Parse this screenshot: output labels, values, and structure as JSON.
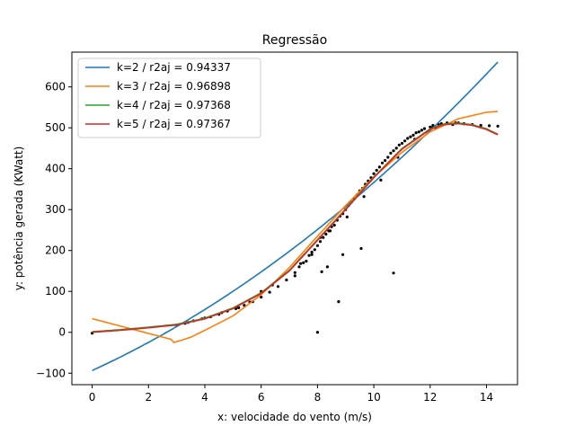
{
  "chart_data": {
    "type": "scatter",
    "title": "Regressão",
    "xlabel": "x: velocidade do vento (m/s)",
    "ylabel": "y: potência gerada (KWatt)",
    "xlim": [
      -0.72,
      15.1
    ],
    "ylim": [
      -128,
      685
    ],
    "xticks": [
      0,
      2,
      4,
      6,
      8,
      10,
      12,
      14
    ],
    "yticks": [
      -100,
      0,
      100,
      200,
      300,
      400,
      500,
      600
    ],
    "grid": false,
    "legend_position": "top-left",
    "scatter": {
      "color": "#000000",
      "x": [
        0,
        8,
        3.0,
        3.3,
        3.6,
        3.9,
        4.2,
        4.5,
        4.8,
        5.1,
        5.4,
        5.7,
        6.0,
        6.3,
        6.6,
        6.9,
        7.2,
        7.5,
        7.8,
        8.1,
        8.4,
        8.7,
        9.0,
        9.3,
        9.6,
        9.9,
        10.2,
        10.5,
        10.8,
        11.1,
        11.4,
        11.7,
        12.0,
        12.3,
        12.6,
        12.9,
        13.2,
        13.5,
        13.8,
        14.1,
        14.4,
        7.4,
        7.7,
        8.0,
        8.2,
        8.5,
        8.8,
        9.1,
        9.4,
        9.7,
        10.0,
        10.3,
        10.6,
        10.9,
        11.2,
        11.5,
        11.8,
        12.1,
        12.4,
        7.2,
        7.6,
        7.9,
        8.3,
        8.6,
        8.9,
        9.2,
        9.5,
        9.8,
        10.1,
        10.4,
        10.7,
        11.0,
        11.3,
        11.6,
        12.2,
        12.8,
        13.0,
        8.35,
        8.15,
        8.9,
        8.75,
        9.55,
        10.7,
        6.4,
        6.0,
        5.6,
        5.2,
        4.6,
        4.0,
        3.4,
        8.1,
        8.45,
        9.05,
        9.65,
        10.25,
        10.85,
        11.45,
        12.05,
        7.35,
        7.8
      ],
      "y": [
        -2,
        0,
        18,
        22,
        28,
        33,
        38,
        44,
        52,
        58,
        66,
        75,
        86,
        98,
        112,
        128,
        146,
        170,
        196,
        222,
        248,
        274,
        300,
        326,
        352,
        378,
        404,
        428,
        450,
        468,
        482,
        494,
        502,
        508,
        512,
        512,
        510,
        508,
        506,
        505,
        504,
        168,
        188,
        212,
        232,
        258,
        284,
        310,
        336,
        362,
        388,
        414,
        438,
        458,
        474,
        488,
        498,
        506,
        510,
        138,
        174,
        202,
        240,
        262,
        290,
        318,
        346,
        370,
        396,
        420,
        444,
        462,
        478,
        490,
        500,
        508,
        512,
        160,
        148,
        190,
        75,
        205,
        145,
        116,
        100,
        74,
        60,
        48,
        35,
        24,
        232,
        248,
        282,
        332,
        372,
        428,
        472,
        500,
        160,
        190
      ]
    },
    "series": [
      {
        "name": "k=2 /  r2aj = 0.94337",
        "color": "#1f77b4",
        "coef": [
          -93.41,
          31.49,
          1.45
        ]
      },
      {
        "name": "k=3 /  r2aj = 0.96898",
        "color": "#ff7f0e",
        "coef": [
          33.37,
          -18.04,
          6.3
        ]
      },
      {
        "name": "k=4 /  r2aj = 0.97368",
        "color": "#2ca02c",
        "coef": [
          -0.78,
          6.25,
          0.0
        ]
      },
      {
        "name": "k=5 /  r2aj = 0.97367",
        "color": "#d62728",
        "coef": [
          -0.99,
          6.38,
          0.0
        ]
      }
    ]
  }
}
